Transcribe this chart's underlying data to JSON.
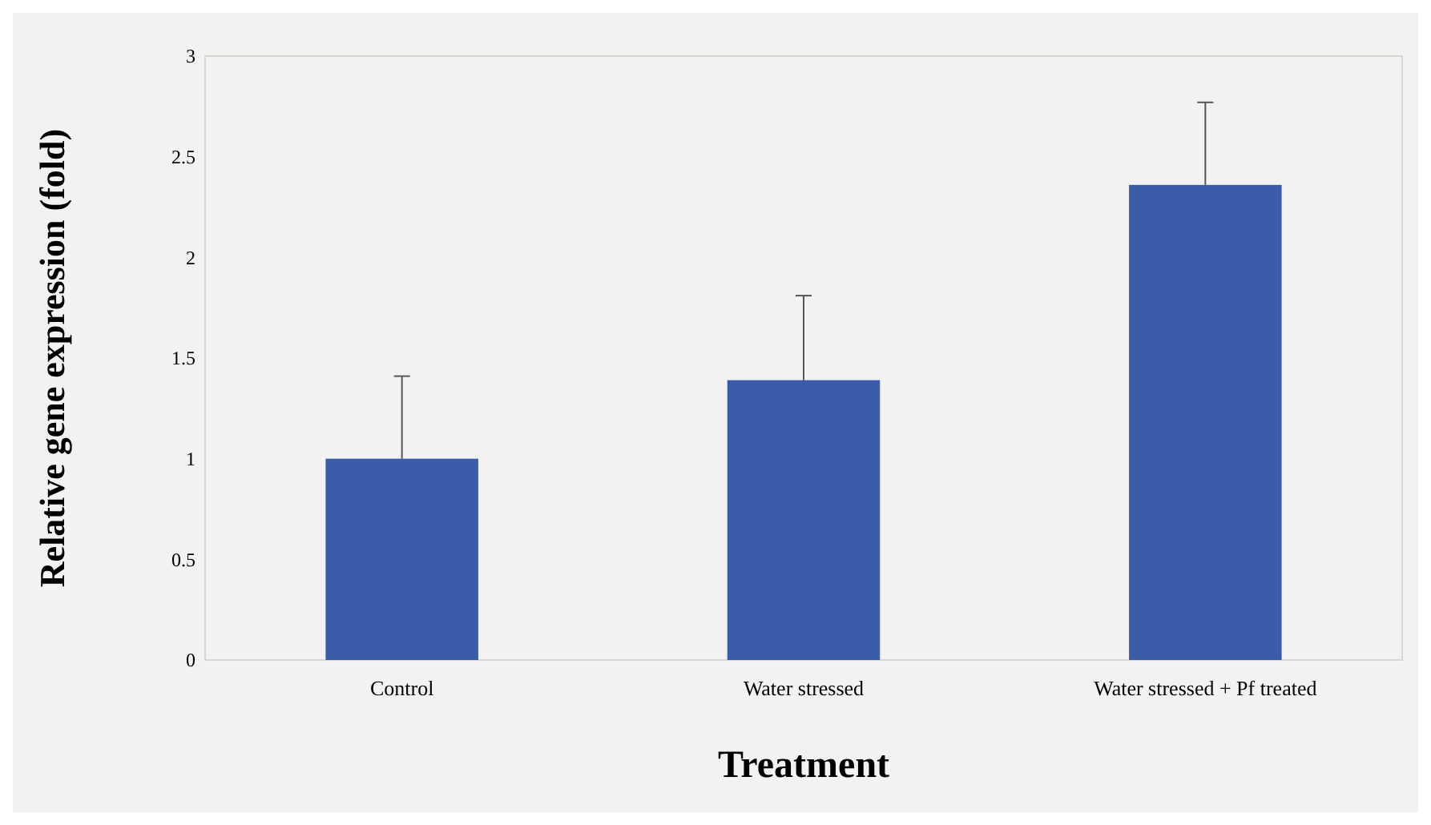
{
  "chart_data": {
    "type": "bar",
    "xlabel": "Treatment",
    "ylabel": "Relative gene expression (fold)",
    "categories": [
      "Control",
      "Water stressed",
      "Water stressed + Pf treated"
    ],
    "values": [
      1.0,
      1.39,
      2.36
    ],
    "errors": [
      [
        1.0,
        1.41
      ],
      [
        1.39,
        1.81
      ],
      [
        2.36,
        2.77
      ]
    ],
    "color": "#3b5ca9",
    "ylim": [
      0,
      3
    ],
    "yticks": [
      0,
      0.5,
      1,
      1.5,
      2,
      2.5,
      3
    ],
    "grid": false
  }
}
